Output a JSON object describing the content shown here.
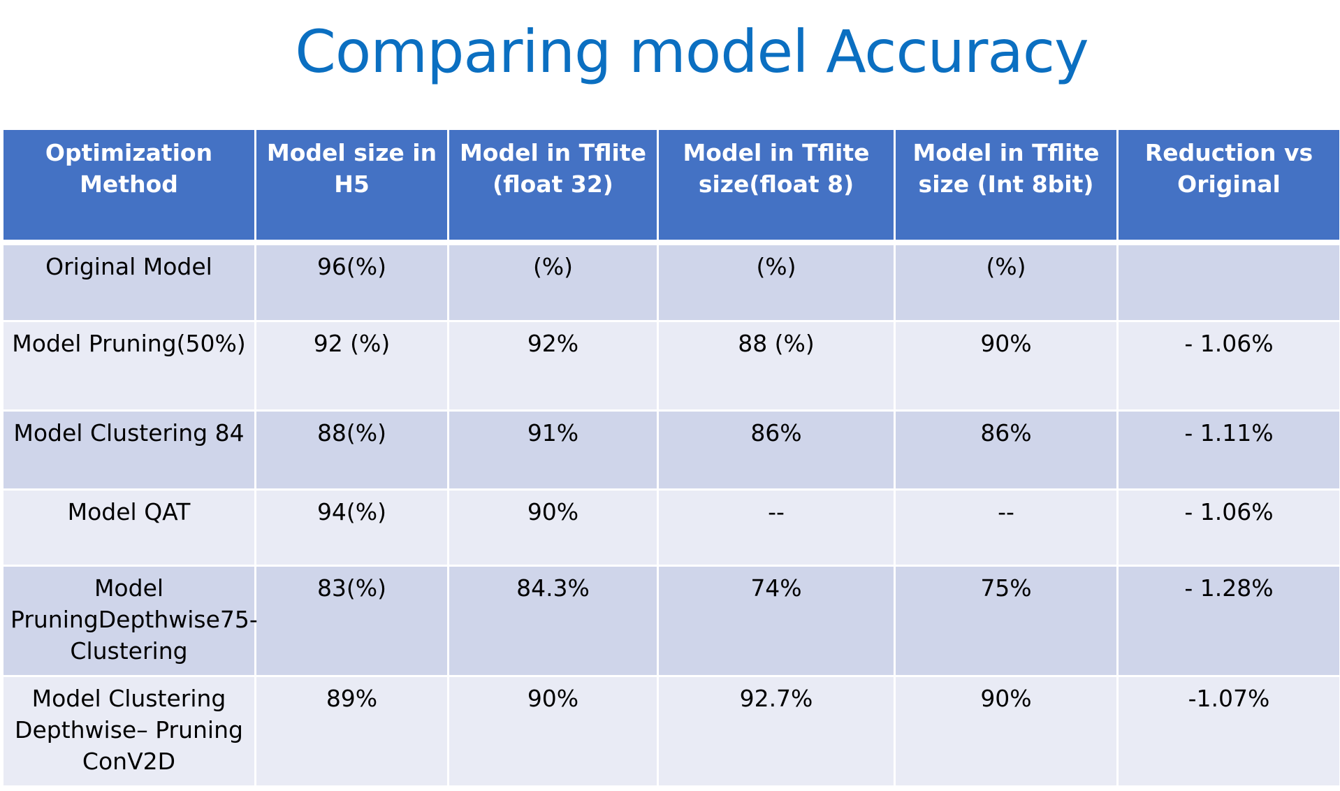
{
  "title": "Comparing model Accuracy",
  "table": {
    "headers": [
      "Optimization Method",
      "Model size in H5",
      "Model in Tflite (float 32)",
      "Model in Tflite size(float 8)",
      "Model in Tflite size (Int 8bit)",
      "Reduction vs Original"
    ],
    "rows": [
      [
        "Original Model",
        "96(%)",
        "(%)",
        "(%)",
        "(%)",
        ""
      ],
      [
        "Model Pruning(50%)",
        "92 (%)",
        "92%",
        "88 (%)",
        "90%",
        "- 1.06%"
      ],
      [
        "Model Clustering 84",
        "88(%)",
        "91%",
        "86%",
        "86%",
        "- 1.11%"
      ],
      [
        "Model QAT",
        "94(%)",
        "90%",
        "--",
        "--",
        "- 1.06%"
      ],
      [
        "Model PruningDepthwise75-Clustering",
        "83(%)",
        "84.3%",
        "74%",
        "75%",
        "- 1.28%"
      ],
      [
        "Model Clustering Depthwise– Pruning ConV2D",
        "89%",
        "90%",
        "92.7%",
        "90%",
        "-1.07%"
      ]
    ]
  },
  "colors": {
    "title": "#0B6FC1",
    "header_bg": "#4472C4",
    "row_dark": "#CFD5EA",
    "row_light": "#E9EBF5"
  }
}
